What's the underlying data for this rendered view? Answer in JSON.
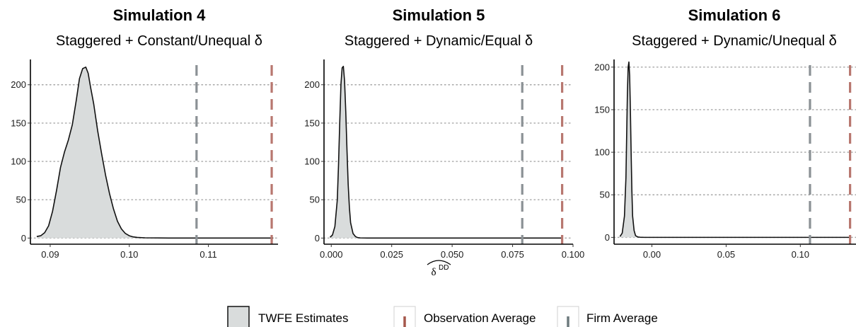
{
  "colors": {
    "fill": "#d9dcdc",
    "observation_line": "#b8776f",
    "firm_line": "#8b9195",
    "grid": "#a6a6a6",
    "legend_firm_tick": "#6e7a7e",
    "legend_obs_tick": "#a5584c"
  },
  "legend": {
    "items": [
      {
        "label": "TWFE Estimates",
        "kind": "fill"
      },
      {
        "label": "Observation Average",
        "kind": "observation"
      },
      {
        "label": "Firm Average",
        "kind": "firm"
      }
    ]
  },
  "chart_data": [
    {
      "type": "area",
      "title": "Simulation 4",
      "subtitle": "Staggered + Constant/Unequal δ",
      "xlabel": "",
      "xlim": [
        0.0875,
        0.1188
      ],
      "ylim": [
        -8,
        233
      ],
      "xticks": [
        0.09,
        0.1,
        0.11
      ],
      "xtick_labels": [
        "0.09",
        "0.10",
        "0.11"
      ],
      "yticks": [
        0,
        50,
        100,
        150,
        200
      ],
      "ytick_labels": [
        "0",
        "50",
        "100",
        "150",
        "200"
      ],
      "grid": "horizontal dotted",
      "vlines": {
        "firm_average": 0.1085,
        "observation_average": 0.118
      },
      "density": {
        "x": [
          0.0883,
          0.0888,
          0.0893,
          0.0898,
          0.0903,
          0.0908,
          0.0913,
          0.0918,
          0.0923,
          0.0928,
          0.0933,
          0.0937,
          0.0941,
          0.0945,
          0.0948,
          0.0951,
          0.0955,
          0.096,
          0.0965,
          0.097,
          0.0975,
          0.098,
          0.0985,
          0.099,
          0.0995,
          0.1,
          0.1005,
          0.101,
          0.102,
          0.105,
          0.11,
          0.115,
          0.1182
        ],
        "y": [
          2,
          3,
          7,
          16,
          35,
          62,
          92,
          112,
          128,
          148,
          180,
          208,
          221,
          223,
          215,
          197,
          175,
          140,
          110,
          82,
          58,
          38,
          22,
          12,
          6,
          3,
          1.5,
          0.8,
          0.3,
          0,
          0,
          0,
          0
        ]
      }
    },
    {
      "type": "area",
      "title": "Simulation 5",
      "subtitle": "Staggered + Dynamic/Equal δ",
      "xlabel": "δ",
      "xlabel_sup": "DD",
      "xlim": [
        -0.003,
        0.1
      ],
      "ylim": [
        -8,
        233
      ],
      "xticks": [
        0.0,
        0.025,
        0.05,
        0.075,
        0.1
      ],
      "xtick_labels": [
        "0.000",
        "0.025",
        "0.050",
        "0.075",
        "0.100"
      ],
      "yticks": [
        0,
        50,
        100,
        150,
        200
      ],
      "ytick_labels": [
        "0",
        "50",
        "100",
        "150",
        "200"
      ],
      "grid": "horizontal dotted",
      "vlines": {
        "firm_average": 0.079,
        "observation_average": 0.0955
      },
      "density": {
        "x": [
          -0.0005,
          0.0005,
          0.0015,
          0.0025,
          0.003,
          0.0035,
          0.004,
          0.0045,
          0.005,
          0.0055,
          0.006,
          0.0065,
          0.007,
          0.0075,
          0.008,
          0.009,
          0.01,
          0.011,
          0.012,
          0.015,
          0.03,
          0.06,
          0.09,
          0.0955
        ],
        "y": [
          1,
          4,
          15,
          50,
          95,
          150,
          200,
          222,
          224,
          205,
          165,
          115,
          70,
          40,
          20,
          6,
          2,
          0.5,
          0.2,
          0,
          0,
          0,
          0,
          0
        ]
      }
    },
    {
      "type": "area",
      "title": "Simulation 6",
      "subtitle": "Staggered + Dynamic/Unequal δ",
      "xlabel": "",
      "xlim": [
        -0.0255,
        0.1375
      ],
      "ylim": [
        -8,
        209
      ],
      "xticks": [
        0.0,
        0.05,
        0.1
      ],
      "xtick_labels": [
        "0.00",
        "0.05",
        "0.10"
      ],
      "yticks": [
        0,
        50,
        100,
        150,
        200
      ],
      "ytick_labels": [
        "0",
        "50",
        "100",
        "150",
        "200"
      ],
      "grid": "horizontal dotted",
      "vlines": {
        "firm_average": 0.1065,
        "observation_average": 0.1335
      },
      "density": {
        "x": [
          -0.0215,
          -0.02,
          -0.0185,
          -0.0175,
          -0.017,
          -0.0165,
          -0.016,
          -0.0155,
          -0.015,
          -0.0145,
          -0.014,
          -0.0135,
          -0.013,
          -0.012,
          -0.011,
          -0.0095,
          -0.008,
          -0.005,
          0.02,
          0.06,
          0.1,
          0.1335
        ],
        "y": [
          1,
          5,
          25,
          70,
          120,
          170,
          200,
          206,
          190,
          150,
          100,
          55,
          25,
          8,
          2,
          0.5,
          0.2,
          0,
          0,
          0,
          0,
          0
        ]
      }
    }
  ]
}
